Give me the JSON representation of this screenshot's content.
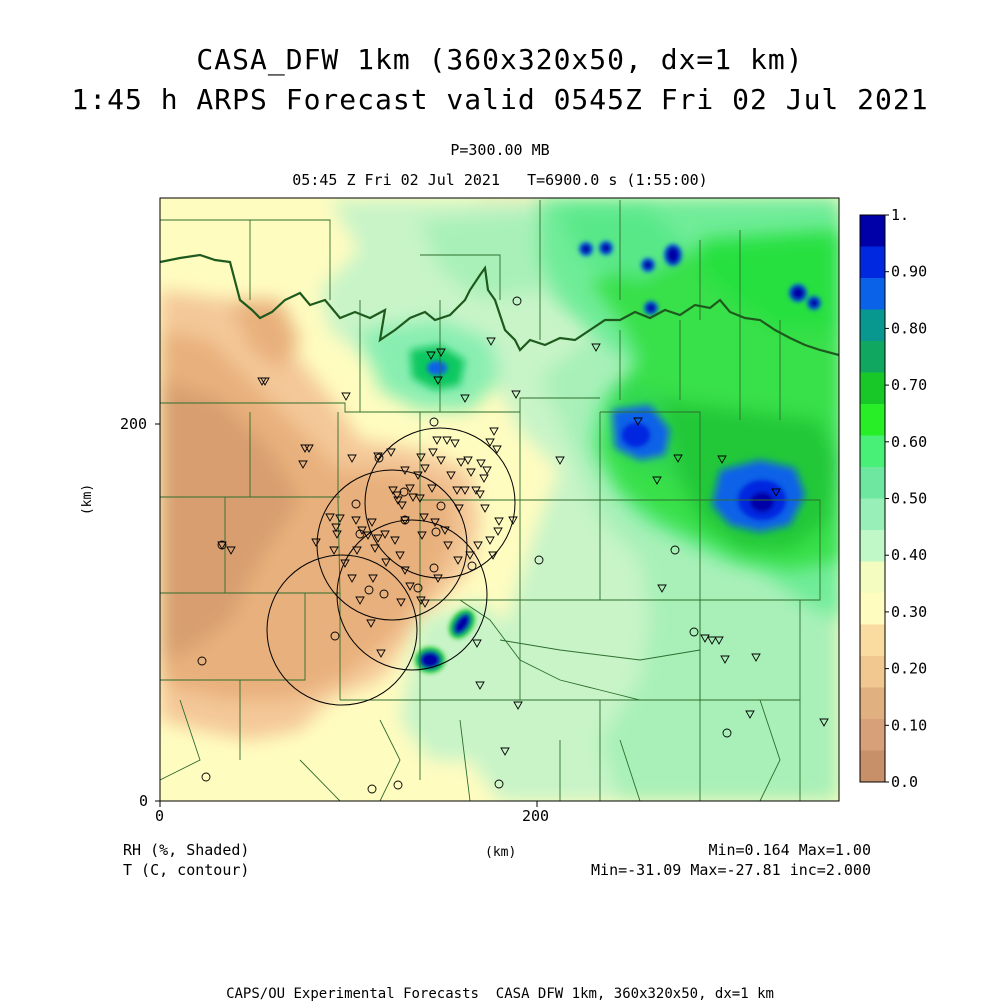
{
  "header": {
    "title_line1": "CASA_DFW 1km (360x320x50, dx=1 km)",
    "title_line2": "1:45 h ARPS Forecast valid 0545Z Fri 02 Jul 2021",
    "pressure": "P=300.00 MB",
    "time_line": "05:45 Z Fri 02 Jul 2021   T=6900.0 s (1:55:00)"
  },
  "axes": {
    "x_ticks": [
      "0",
      "200"
    ],
    "y_ticks": [
      "0",
      "200"
    ],
    "x_label": "(km)",
    "y_label": "(km)"
  },
  "colorbar": {
    "labels": [
      "1.",
      "0.90",
      "0.80",
      "0.70",
      "0.60",
      "0.50",
      "0.40",
      "0.30",
      "0.20",
      "0.10",
      "0.0"
    ],
    "colors": [
      "#0000a8",
      "#0028e0",
      "#0a62e8",
      "#089890",
      "#10a860",
      "#18c828",
      "#28ee28",
      "#48f078",
      "#6ee8a0",
      "#98f0b8",
      "#c0f8c8",
      "#f4fcc0",
      "#fffcc0",
      "#fbdca0",
      "#f0c890",
      "#e0b080",
      "#d8a078",
      "#c89068"
    ]
  },
  "footer": {
    "field1": "RH (%, Shaded)",
    "field2": "T (C, contour)",
    "unit": "(km)",
    "stats1": "Min=0.164 Max=1.00",
    "stats2": "Min=-31.09 Max=-27.81 inc=2.000",
    "credit": "CAPS/OU Experimental Forecasts  CASA DFW 1km, 360x320x50, dx=1 km"
  },
  "map_data": {
    "field": "RH",
    "range": [
      0.164,
      1.0
    ],
    "radar_rings": 4,
    "station_markers": "triangles and circles"
  },
  "colors": {
    "state_border": "#1e5a1e",
    "county_line": "#2e6e2e",
    "contour": "#000000"
  }
}
